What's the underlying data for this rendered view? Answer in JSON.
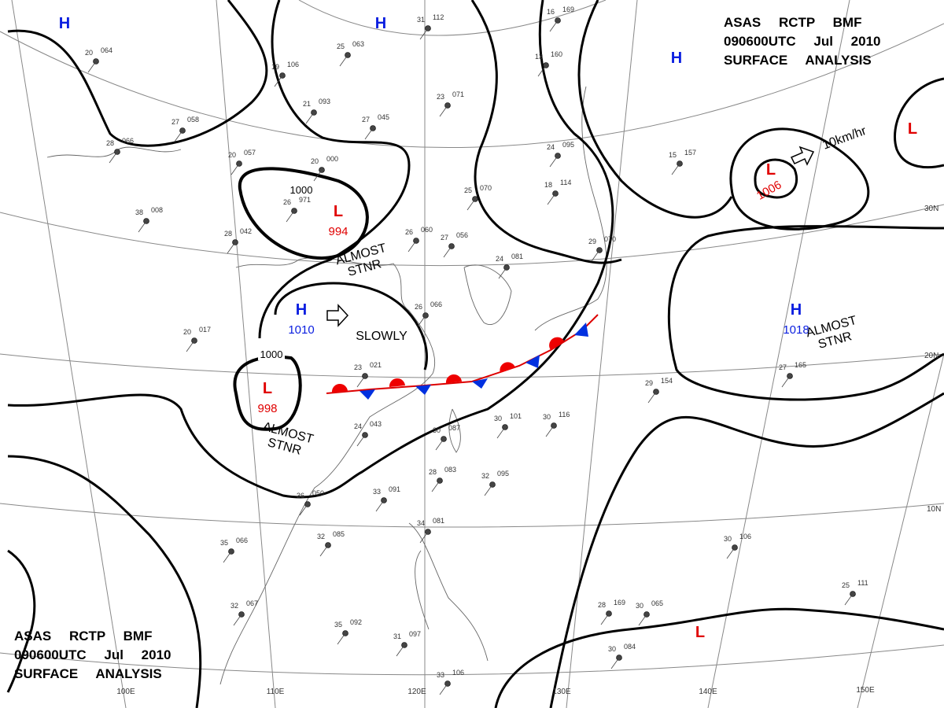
{
  "header_top": {
    "lines": [
      "ASAS RCTP BMF",
      "090600UTC Jul 2010",
      "SURFACE ANALYSIS"
    ]
  },
  "header_bottom": {
    "lines": [
      "ASAS RCTP BMF",
      "090600UTC Jul 2010",
      "SURFACE ANALYSIS"
    ]
  },
  "pressure_systems": [
    {
      "kind": "H"
    },
    {
      "kind": "H"
    },
    {
      "kind": "H"
    },
    {
      "kind": "H",
      "value": 1010
    },
    {
      "kind": "H",
      "value": 1018
    },
    {
      "kind": "L",
      "value": 994
    },
    {
      "kind": "L",
      "value": 998
    },
    {
      "kind": "L",
      "value": 1006
    },
    {
      "kind": "L"
    },
    {
      "kind": "L"
    }
  ],
  "isobar_labels": [
    "1000",
    "1000"
  ],
  "annotations": [
    "ALMOST STNR",
    "SLOWLY",
    "ALMOST STNR",
    "ALMOST STNR",
    "10km/hr"
  ],
  "latitude_labels": [
    "30N",
    "20N",
    "10N"
  ],
  "longitude_labels": [
    "100E",
    "110E",
    "120E",
    "130E",
    "140E",
    "150E"
  ],
  "stations": [
    {
      "temp": 20,
      "pressure": "064"
    },
    {
      "temp": 19,
      "pressure": "106"
    },
    {
      "temp": 25,
      "pressure": "063"
    },
    {
      "temp": 31,
      "pressure": "112"
    },
    {
      "temp": 16,
      "pressure": "169"
    },
    {
      "temp": 13,
      "pressure": "160"
    },
    {
      "temp": 27,
      "pressure": "058"
    },
    {
      "temp": 28,
      "pressure": "066"
    },
    {
      "temp": 21,
      "pressure": "093"
    },
    {
      "temp": 27,
      "pressure": "045"
    },
    {
      "temp": 23,
      "pressure": "071"
    },
    {
      "temp": 20,
      "pressure": "057"
    },
    {
      "temp": 20,
      "pressure": "000"
    },
    {
      "temp": 26,
      "pressure": "971"
    },
    {
      "temp": 38,
      "pressure": "008"
    },
    {
      "temp": 28,
      "pressure": "042"
    },
    {
      "temp": 26,
      "pressure": "060"
    },
    {
      "temp": 27,
      "pressure": "056"
    },
    {
      "temp": 24,
      "pressure": "095"
    },
    {
      "temp": 18,
      "pressure": "114"
    },
    {
      "temp": 25,
      "pressure": "070"
    },
    {
      "temp": 15,
      "pressure": "157"
    },
    {
      "temp": 29,
      "pressure": "070"
    },
    {
      "temp": 24,
      "pressure": "081"
    },
    {
      "temp": 26,
      "pressure": "066"
    },
    {
      "temp": 20,
      "pressure": "017"
    },
    {
      "temp": 23,
      "pressure": "021"
    },
    {
      "temp": 24,
      "pressure": "043"
    },
    {
      "temp": 30,
      "pressure": "087"
    },
    {
      "temp": 30,
      "pressure": "101"
    },
    {
      "temp": 30,
      "pressure": "116"
    },
    {
      "temp": 32,
      "pressure": "095"
    },
    {
      "temp": 28,
      "pressure": "083"
    },
    {
      "temp": 33,
      "pressure": "091"
    },
    {
      "temp": 36,
      "pressure": "050"
    },
    {
      "temp": 32,
      "pressure": "085"
    },
    {
      "temp": 35,
      "pressure": "066"
    },
    {
      "temp": 32,
      "pressure": "067"
    },
    {
      "temp": 35,
      "pressure": "092"
    },
    {
      "temp": 31,
      "pressure": "097"
    },
    {
      "temp": 34,
      "pressure": "081"
    },
    {
      "temp": 28,
      "pressure": "169"
    },
    {
      "temp": 30,
      "pressure": "065"
    },
    {
      "temp": 30,
      "pressure": "084"
    },
    {
      "temp": 30,
      "pressure": "106"
    },
    {
      "temp": 25,
      "pressure": "111"
    },
    {
      "temp": 29,
      "pressure": "154"
    },
    {
      "temp": 27,
      "pressure": "165"
    },
    {
      "temp": 33,
      "pressure": "106"
    }
  ]
}
